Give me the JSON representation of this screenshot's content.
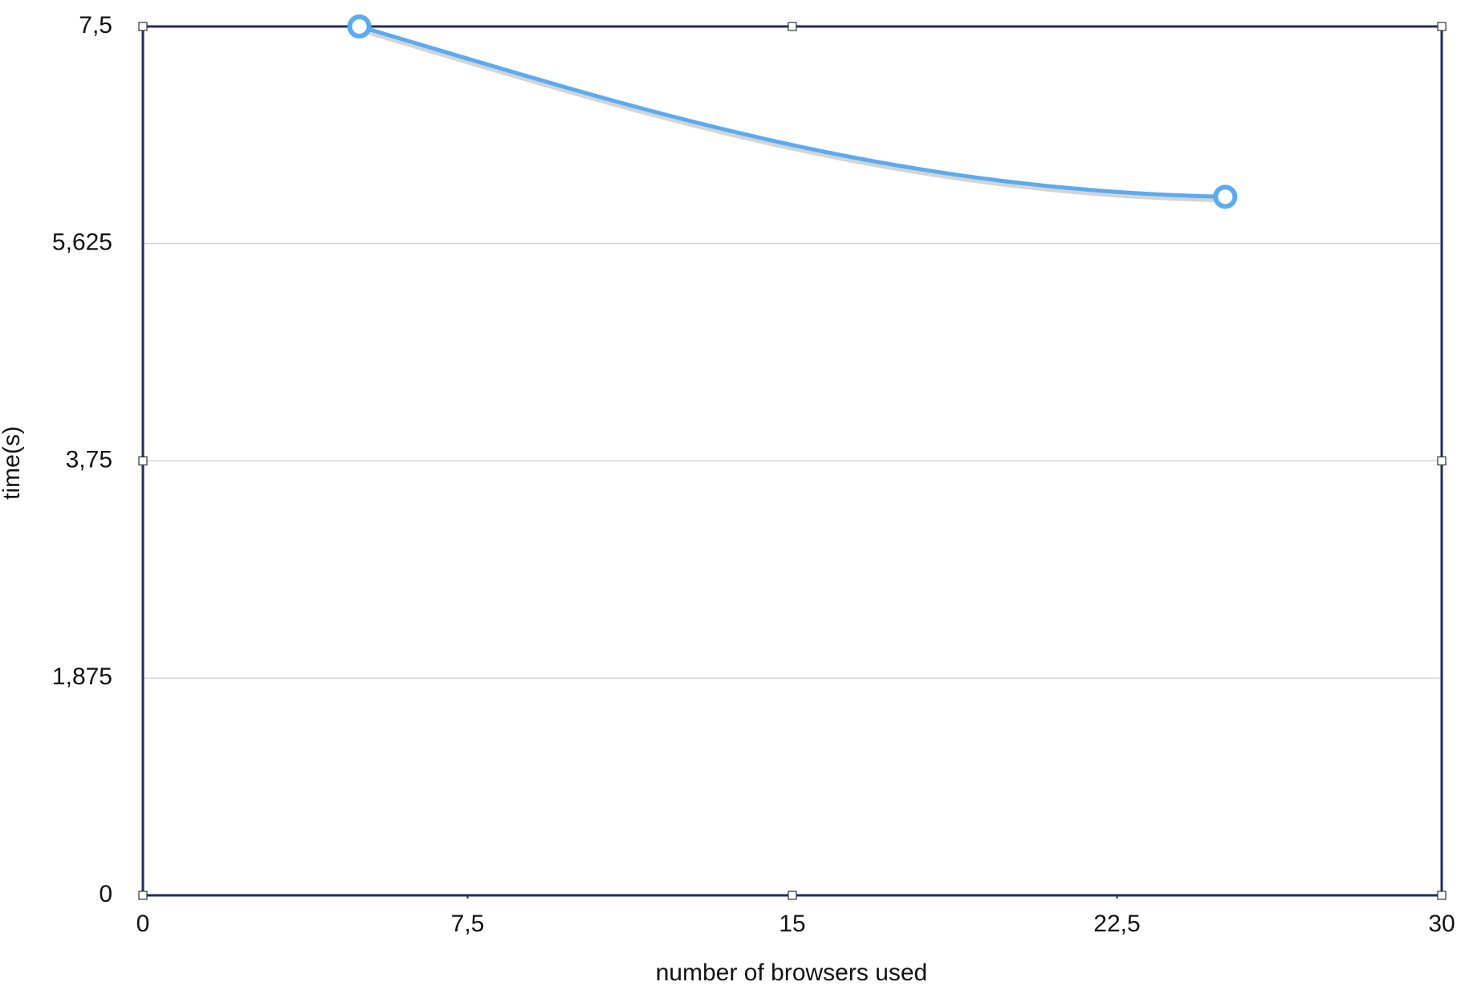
{
  "chart_data": {
    "type": "line",
    "x_label": "number of browsers used",
    "y_label": "time(s)",
    "xlim": [
      0,
      30
    ],
    "xticks": [
      0,
      {
        "value": 7.5,
        "label": "7,5"
      },
      15,
      {
        "value": 22.5,
        "label": "22,5"
      },
      30
    ],
    "ylim": [
      0,
      7.5
    ],
    "yticks": [
      0,
      {
        "value": 1.875,
        "label": "1,875"
      },
      {
        "value": 3.75,
        "label": "3,75"
      },
      {
        "value": 5.625,
        "label": "5,625"
      },
      {
        "value": 7.5,
        "label": "7,5"
      }
    ],
    "grid": true,
    "x": [
      5,
      25
    ],
    "series": [
      {
        "color": "#5aabf0",
        "values": [
          7.5,
          6.03
        ]
      }
    ]
  }
}
